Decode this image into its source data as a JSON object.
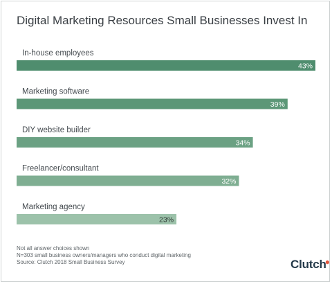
{
  "chart_data": {
    "type": "bar",
    "orientation": "horizontal",
    "title": "Digital Marketing Resources Small Businesses Invest In",
    "categories": [
      "In-house employees",
      "Marketing software",
      "DIY website builder",
      "Freelancer/consultant",
      "Marketing agency"
    ],
    "values": [
      43,
      39,
      34,
      32,
      23
    ],
    "value_labels": [
      "43%",
      "39%",
      "34%",
      "32%",
      "23%"
    ],
    "unit": "%",
    "xlim": [
      0,
      43
    ],
    "grid": false,
    "legend": "none",
    "bar_colors": [
      "#4f8d6e",
      "#5c9777",
      "#6ba183",
      "#7fae92",
      "#9cc2aa"
    ]
  },
  "notes": [
    "Not all answer choices shown",
    "N=303 small business owners/managers who conduct digital marketing",
    "Source: Clutch 2018 Small Business Survey"
  ],
  "brand": {
    "logo_text": "Clutch",
    "accent": "#e4573d"
  }
}
